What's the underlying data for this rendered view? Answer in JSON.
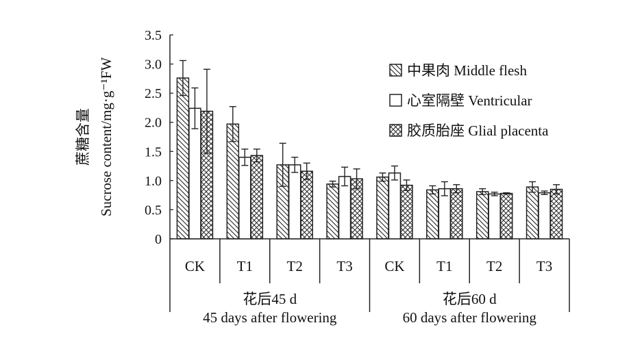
{
  "chart_data": {
    "type": "bar",
    "ylabel_cn": "蔗糖含量",
    "ylabel_en": "Sucrose content/mg·g⁻¹FW",
    "ylim": [
      0,
      3.5
    ],
    "yticks": [
      "0",
      "0.5",
      "1.0",
      "1.5",
      "2.0",
      "2.5",
      "3.0",
      "3.5"
    ],
    "categories": [
      "CK",
      "T1",
      "T2",
      "T3",
      "CK",
      "T1",
      "T2",
      "T3"
    ],
    "groups": [
      {
        "label_cn": "花后45 d",
        "label_en": "45 days after flowering"
      },
      {
        "label_cn": "花后60 d",
        "label_en": "60 days after flowering"
      }
    ],
    "legend_position": "top-right",
    "series": [
      {
        "name": "中果肉 Middle flesh",
        "pattern": "diagonal",
        "values": [
          2.76,
          1.97,
          1.27,
          0.94,
          1.06,
          0.84,
          0.81,
          0.89
        ],
        "errors": [
          0.3,
          0.3,
          0.37,
          0.05,
          0.07,
          0.07,
          0.05,
          0.09
        ]
      },
      {
        "name": "心室隔壁 Ventricular",
        "pattern": "none",
        "values": [
          2.24,
          1.4,
          1.27,
          1.07,
          1.13,
          0.86,
          0.77,
          0.79
        ],
        "errors": [
          0.35,
          0.14,
          0.13,
          0.16,
          0.12,
          0.12,
          0.03,
          0.03
        ]
      },
      {
        "name": "胶质胎座 Glial placenta",
        "pattern": "crosshatch",
        "values": [
          2.19,
          1.43,
          1.16,
          1.03,
          0.92,
          0.86,
          0.78,
          0.85
        ],
        "errors": [
          0.72,
          0.11,
          0.14,
          0.17,
          0.09,
          0.07,
          0.01,
          0.08
        ]
      }
    ],
    "colors": {
      "stroke": "#222222",
      "fill": "#ffffff"
    }
  }
}
